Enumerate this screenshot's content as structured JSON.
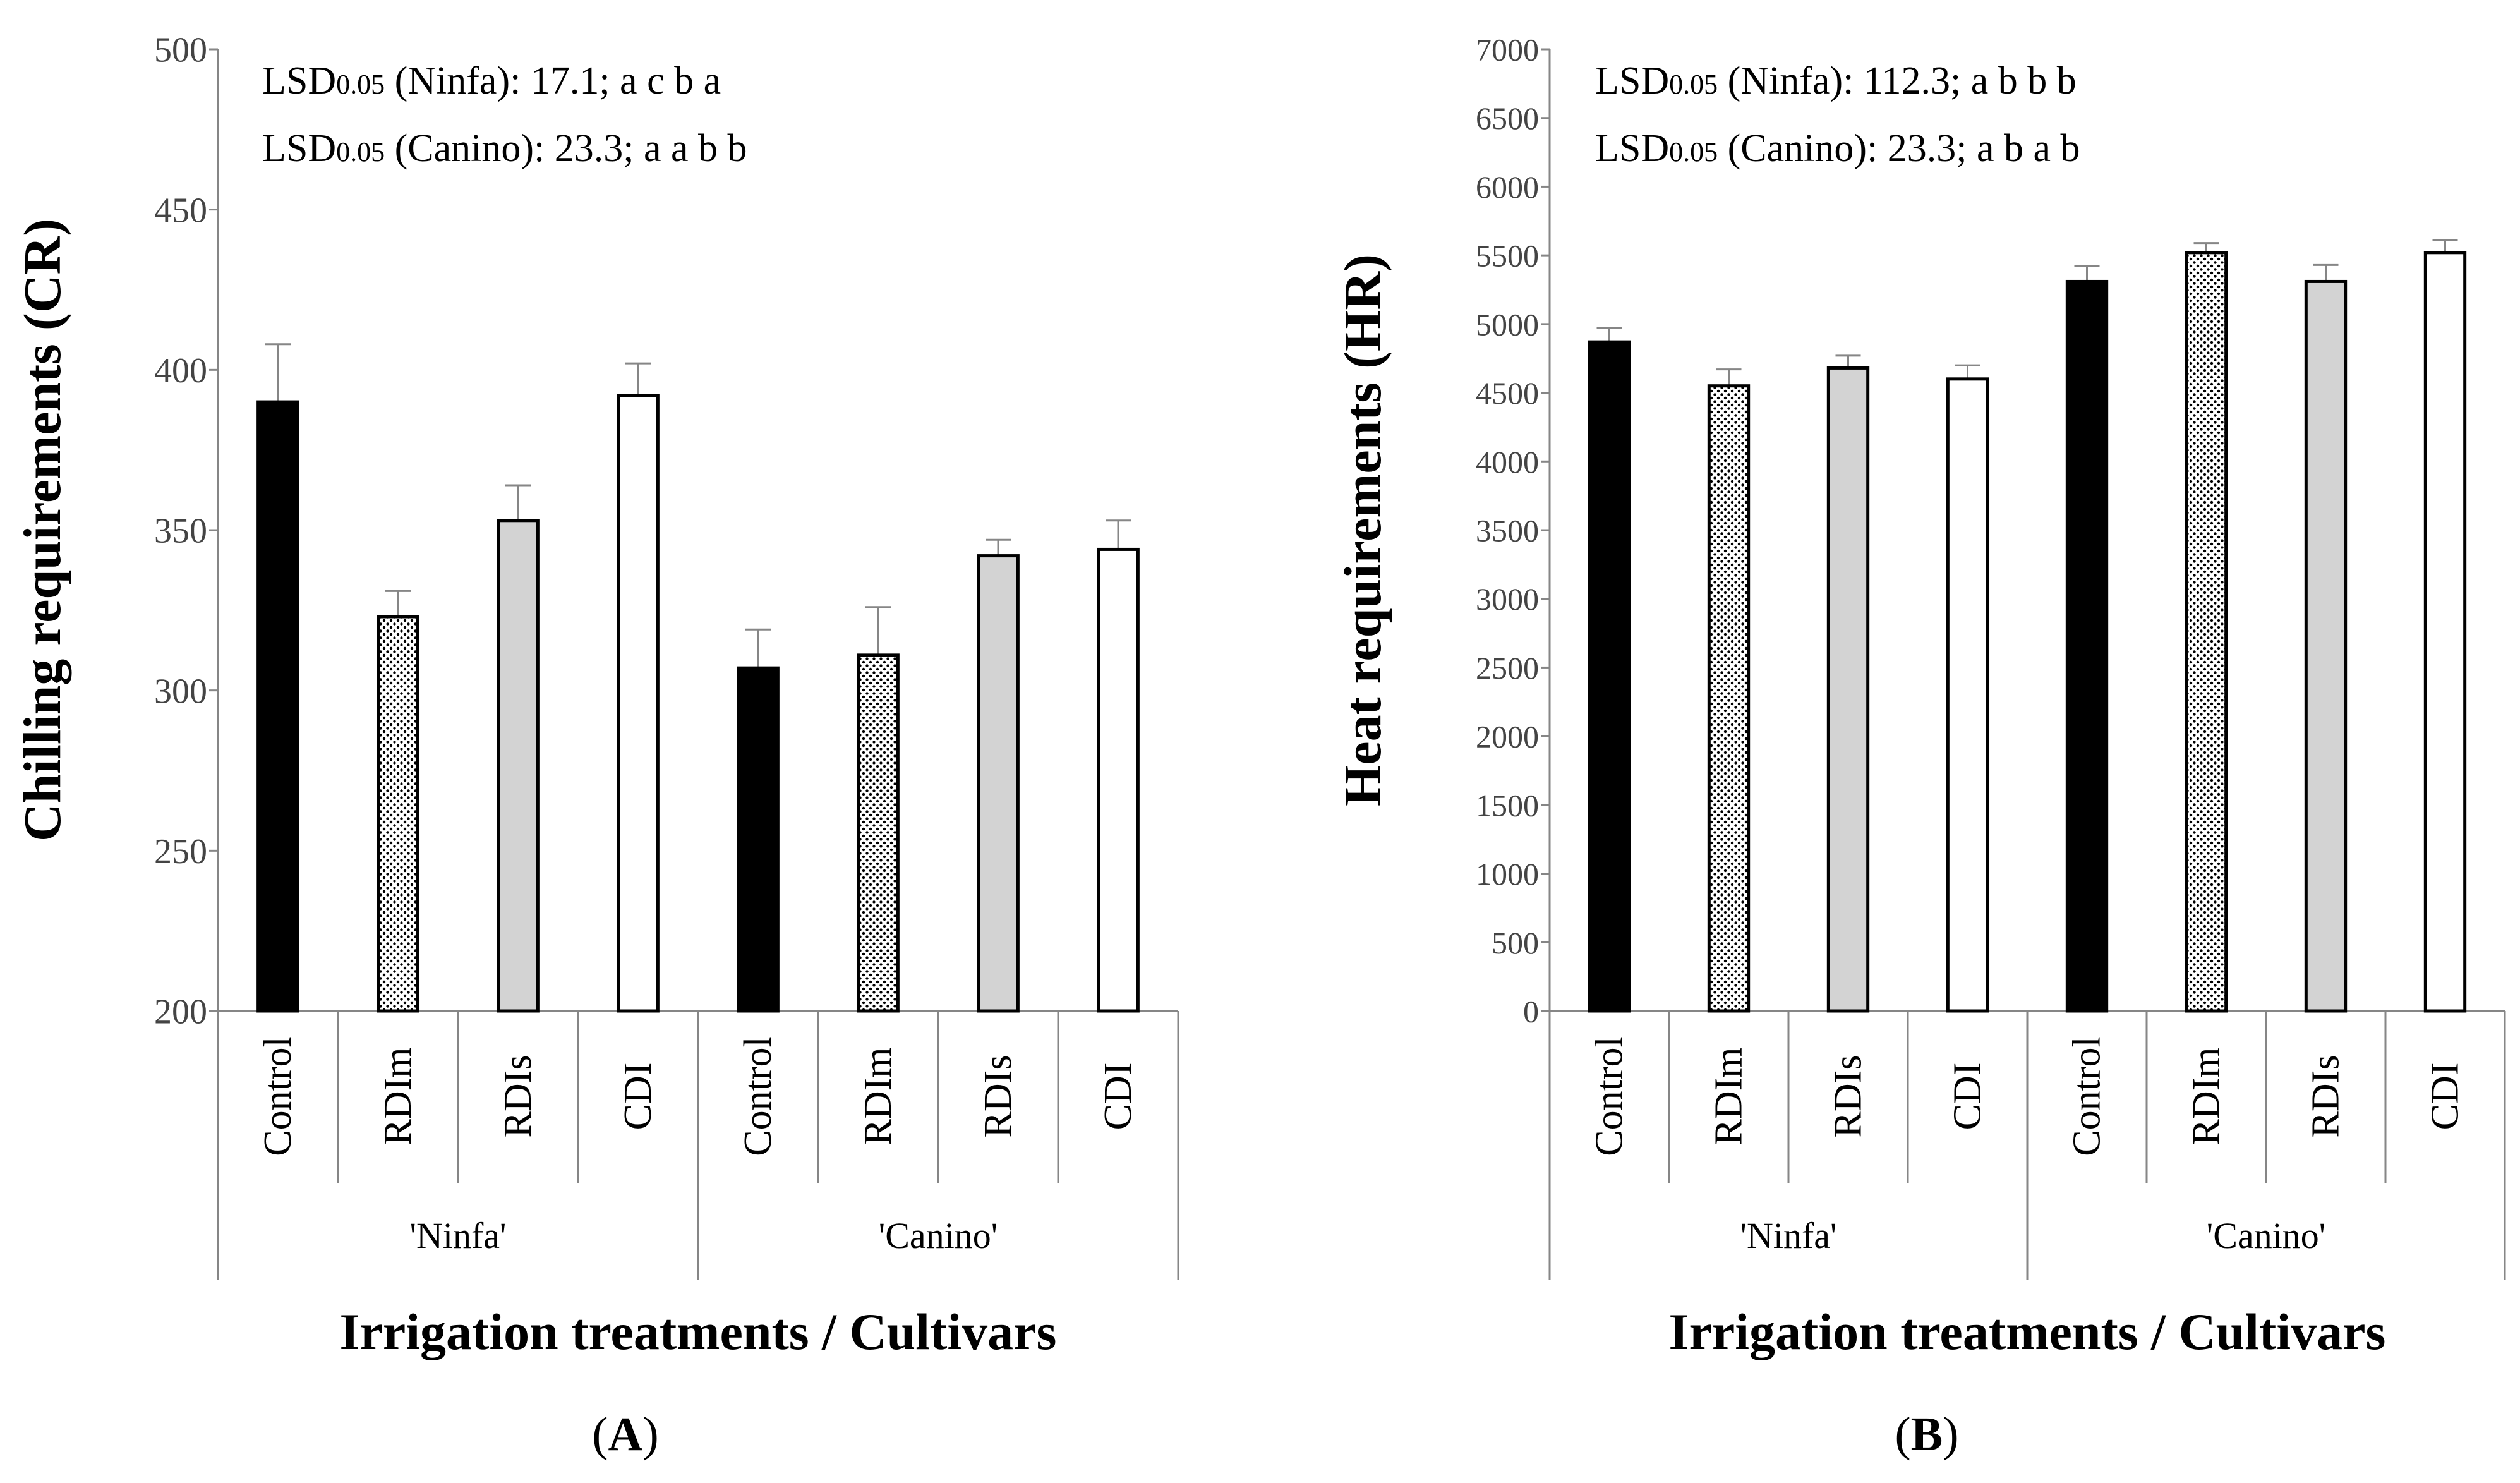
{
  "chart_data": [
    {
      "panel": "(A)",
      "panel_letter": "A",
      "type": "bar",
      "ylabel": "Chilling requirements (CR)",
      "xlabel": "Irrigation treatments / Cultivars",
      "ylim": [
        200,
        500
      ],
      "yticks": [
        200,
        250,
        300,
        350,
        400,
        450,
        500
      ],
      "groups": [
        "'Ninfa'",
        "'Canino'"
      ],
      "categories": [
        "Control",
        "RDIm",
        "RDIs",
        "CDI",
        "Control",
        "RDIm",
        "RDIs",
        "CDI"
      ],
      "values": [
        390,
        323,
        353,
        392,
        307,
        311,
        342,
        344
      ],
      "errors": [
        18,
        8,
        11,
        10,
        12,
        15,
        5,
        9
      ],
      "annotations": [
        {
          "prefix": "LSD",
          "subscript": "0.05",
          "text": " (Ninfa): 17.1; a c b a"
        },
        {
          "prefix": "LSD",
          "subscript": "0.05",
          "text": " (Canino): 23.3; a a b b"
        }
      ]
    },
    {
      "panel": "(B)",
      "panel_letter": "B",
      "type": "bar",
      "ylabel": "Heat requirements (HR)",
      "xlabel": "Irrigation treatments / Cultivars",
      "ylim": [
        0,
        7000
      ],
      "yticks": [
        0,
        500,
        1000,
        1500,
        2000,
        2500,
        3000,
        3500,
        4000,
        4500,
        5000,
        5500,
        6000,
        6500,
        7000
      ],
      "groups": [
        "'Ninfa'",
        "'Canino'"
      ],
      "categories": [
        "Control",
        "RDIm",
        "RDIs",
        "CDI",
        "Control",
        "RDIm",
        "RDIs",
        "CDI"
      ],
      "values": [
        4870,
        4550,
        4680,
        4600,
        5310,
        5520,
        5310,
        5520
      ],
      "errors": [
        100,
        120,
        90,
        100,
        110,
        70,
        120,
        90
      ],
      "annotations": [
        {
          "prefix": "LSD",
          "subscript": "0.05",
          "text": " (Ninfa): 112.3; a b b b"
        },
        {
          "prefix": "LSD",
          "subscript": "0.05",
          "text": " (Canino): 23.3; a b a b"
        }
      ]
    }
  ],
  "treatment_fills": {
    "Control": "#000000",
    "RDIm": "dots",
    "RDIs": "#d3d3d3",
    "CDI": "#ffffff"
  },
  "colors": {
    "axis": "#868686",
    "bar_outline": "#000000",
    "text": "#000000",
    "tick_text": "#444444"
  }
}
